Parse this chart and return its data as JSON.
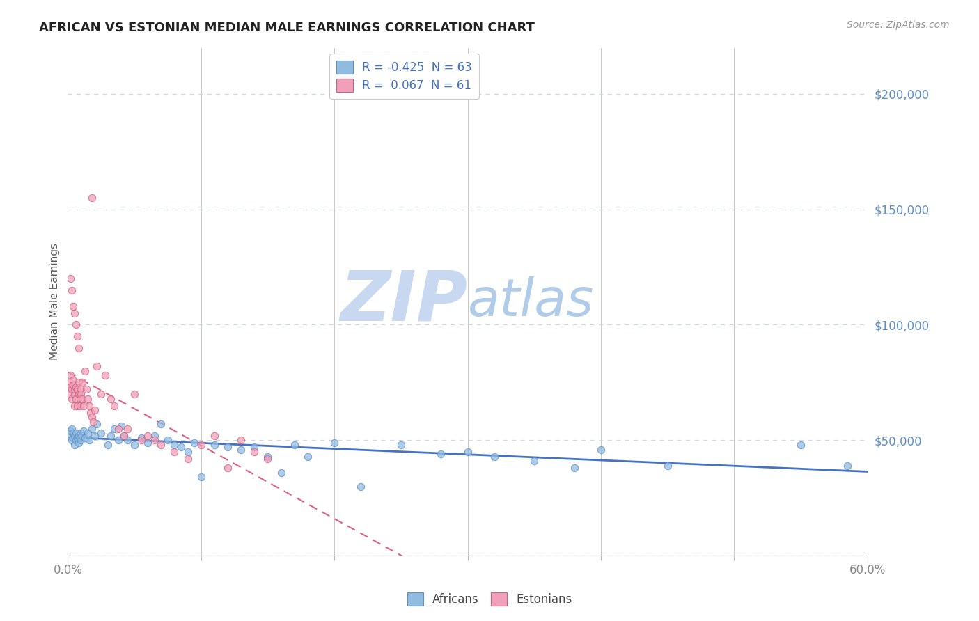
{
  "title": "AFRICAN VS ESTONIAN MEDIAN MALE EARNINGS CORRELATION CHART",
  "source": "Source: ZipAtlas.com",
  "ylabel": "Median Male Earnings",
  "xlim": [
    0.0,
    0.6
  ],
  "ylim": [
    0,
    220000
  ],
  "africans_color": "#90bce0",
  "africans_edge": "#6090c8",
  "estonians_color": "#f0a0b8",
  "estonians_edge": "#d06080",
  "trendline_africans_color": "#4472c4",
  "trendline_estonians_color": "#e06080",
  "watermark_zip_color": "#c8d8f0",
  "watermark_atlas_color": "#b0cce8",
  "grid_color": "#d0d8e8",
  "ytick_color": "#6090c8",
  "xtick_color": "#888888",
  "africans_R": -0.425,
  "africans_N": 63,
  "estonians_R": 0.067,
  "estonians_N": 61,
  "africans_x": [
    0.001,
    0.002,
    0.003,
    0.003,
    0.004,
    0.004,
    0.005,
    0.005,
    0.006,
    0.006,
    0.007,
    0.008,
    0.008,
    0.009,
    0.01,
    0.01,
    0.011,
    0.012,
    0.013,
    0.015,
    0.016,
    0.018,
    0.02,
    0.022,
    0.025,
    0.03,
    0.032,
    0.035,
    0.038,
    0.04,
    0.042,
    0.045,
    0.05,
    0.055,
    0.06,
    0.065,
    0.07,
    0.075,
    0.08,
    0.085,
    0.09,
    0.095,
    0.1,
    0.11,
    0.12,
    0.13,
    0.14,
    0.15,
    0.16,
    0.17,
    0.18,
    0.2,
    0.22,
    0.25,
    0.28,
    0.3,
    0.32,
    0.35,
    0.38,
    0.4,
    0.45,
    0.55,
    0.585
  ],
  "africans_y": [
    52000,
    54000,
    50000,
    55000,
    53000,
    51000,
    52000,
    48000,
    50000,
    53000,
    51000,
    52000,
    49000,
    51000,
    53000,
    50000,
    52000,
    54000,
    51000,
    53000,
    50000,
    55000,
    52000,
    57000,
    53000,
    48000,
    52000,
    55000,
    50000,
    56000,
    52000,
    50000,
    48000,
    51000,
    49000,
    52000,
    57000,
    50000,
    48000,
    47000,
    45000,
    49000,
    34000,
    48000,
    47000,
    46000,
    47000,
    43000,
    36000,
    48000,
    43000,
    49000,
    30000,
    48000,
    44000,
    45000,
    43000,
    41000,
    38000,
    46000,
    39000,
    48000,
    39000
  ],
  "estonians_x": [
    0.001,
    0.001,
    0.002,
    0.002,
    0.003,
    0.003,
    0.004,
    0.004,
    0.005,
    0.005,
    0.005,
    0.006,
    0.006,
    0.007,
    0.007,
    0.008,
    0.008,
    0.009,
    0.009,
    0.01,
    0.01,
    0.011,
    0.011,
    0.012,
    0.013,
    0.014,
    0.015,
    0.016,
    0.017,
    0.018,
    0.018,
    0.019,
    0.02,
    0.022,
    0.025,
    0.028,
    0.032,
    0.035,
    0.038,
    0.042,
    0.045,
    0.05,
    0.055,
    0.06,
    0.065,
    0.07,
    0.08,
    0.09,
    0.1,
    0.11,
    0.12,
    0.13,
    0.14,
    0.15,
    0.002,
    0.003,
    0.004,
    0.005,
    0.006,
    0.007,
    0.008
  ],
  "estonians_y": [
    70000,
    75000,
    73000,
    78000,
    68000,
    72000,
    76000,
    74000,
    65000,
    70000,
    72000,
    68000,
    73000,
    72000,
    65000,
    75000,
    70000,
    68000,
    65000,
    72000,
    70000,
    68000,
    75000,
    65000,
    80000,
    72000,
    68000,
    65000,
    62000,
    60000,
    155000,
    58000,
    63000,
    82000,
    70000,
    78000,
    68000,
    65000,
    55000,
    52000,
    55000,
    70000,
    50000,
    52000,
    50000,
    48000,
    45000,
    42000,
    48000,
    52000,
    38000,
    50000,
    45000,
    42000,
    120000,
    115000,
    108000,
    105000,
    100000,
    95000,
    90000
  ]
}
